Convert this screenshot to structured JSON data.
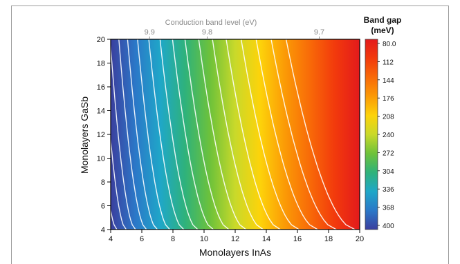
{
  "chart_data": {
    "type": "heatmap",
    "title": "",
    "xlabel": "Monolayers InAs",
    "ylabel": "Monolayers GaSb",
    "top_axis_label": "Conduction band level (eV)",
    "colorbar_title_line1": "Band gap",
    "colorbar_title_line2": "(meV)",
    "xlim": [
      4,
      20
    ],
    "ylim": [
      4,
      20
    ],
    "x_ticks": [
      "4",
      "6",
      "8",
      "10",
      "12",
      "14",
      "16",
      "18",
      "20"
    ],
    "y_ticks": [
      "4",
      "6",
      "8",
      "10",
      "12",
      "14",
      "16",
      "18",
      "20"
    ],
    "top_ticks": [
      {
        "label": "9.9",
        "x": 6.5
      },
      {
        "label": "9.8",
        "x": 10.2
      },
      {
        "label": "9.7",
        "x": 17.4
      }
    ],
    "colorbar": {
      "min": 80.0,
      "max": 400,
      "ticks": [
        "80.0",
        "112",
        "144",
        "176",
        "208",
        "240",
        "272",
        "304",
        "336",
        "368",
        "400"
      ],
      "colors": [
        "#e31a1c",
        "#f23a0c",
        "#f86a08",
        "#fb9a06",
        "#fdd30a",
        "#c9d92a",
        "#6ec23a",
        "#2fb27a",
        "#1fa7c8",
        "#2b78c8",
        "#3b3f9e"
      ]
    },
    "grid": false,
    "contour_color": "#ffffff",
    "contours_bottom_x": [
      4.4,
      5.0,
      5.6,
      6.3,
      7.0,
      7.8,
      8.7,
      9.6,
      10.6,
      11.6,
      12.7,
      13.8,
      14.9,
      16.1,
      17.3,
      18.5,
      19.7
    ]
  }
}
